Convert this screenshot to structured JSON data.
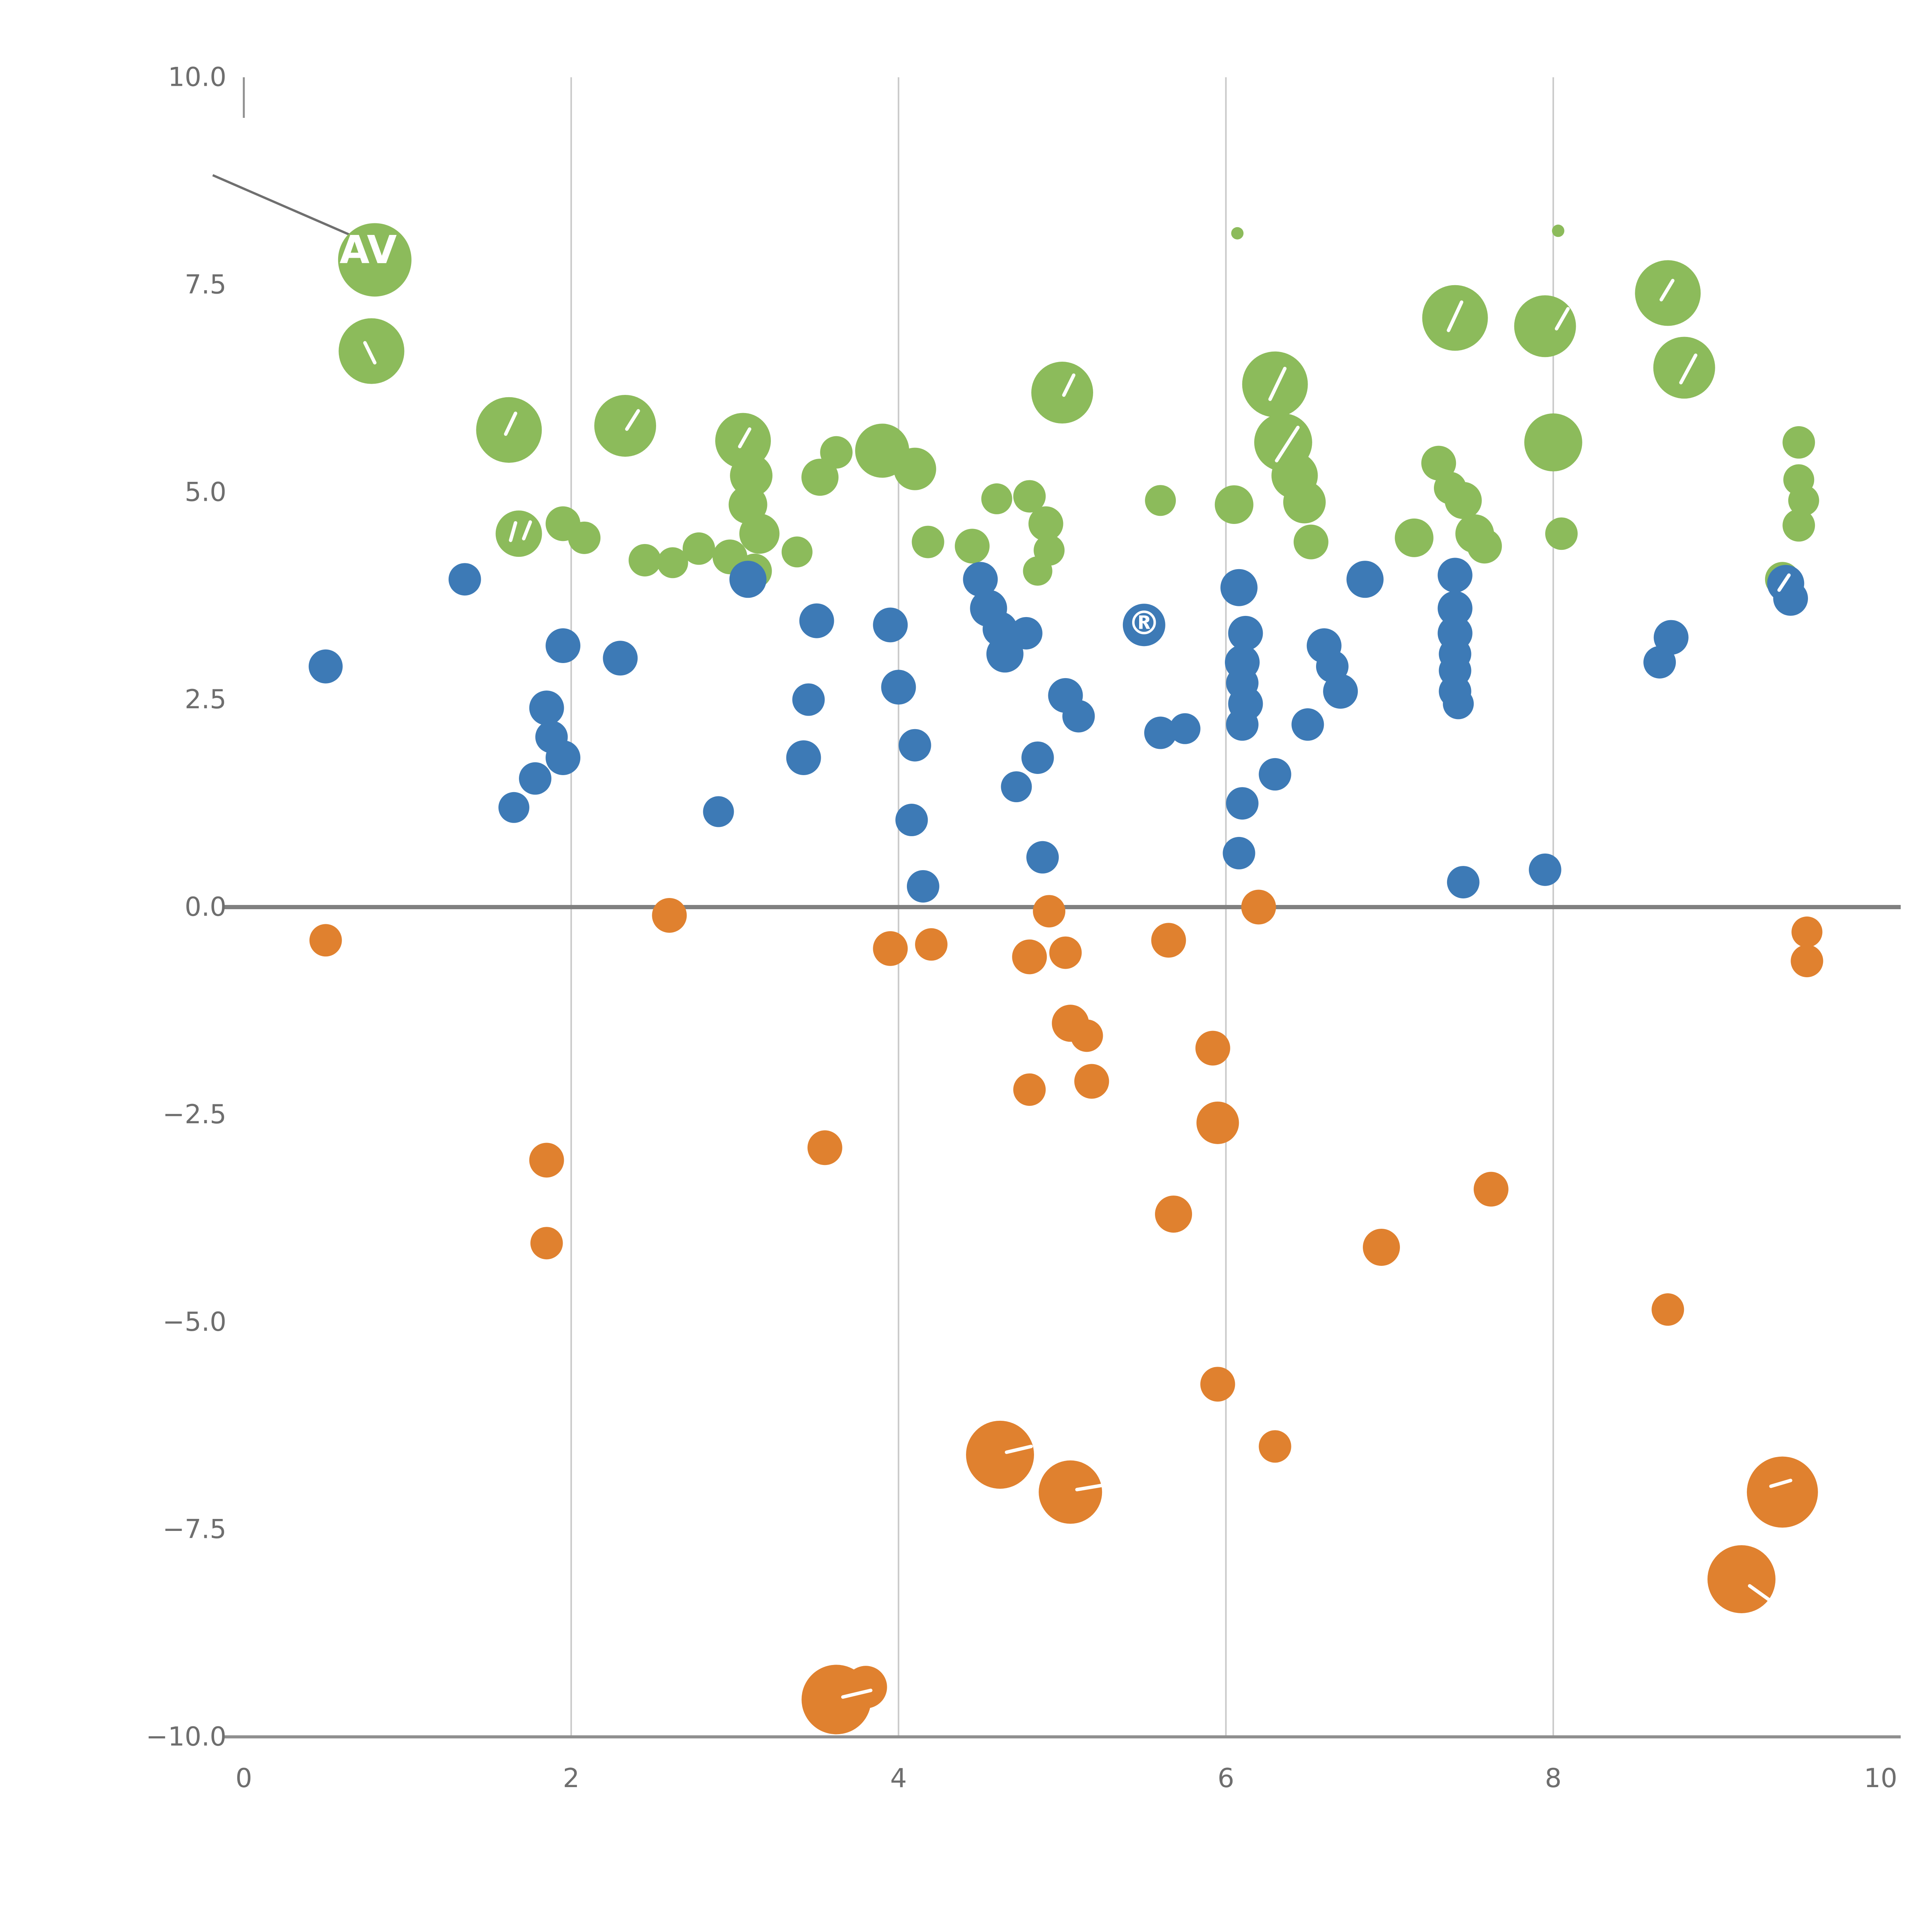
{
  "chart_data": {
    "type": "scatter",
    "title": "",
    "xlabel": "",
    "ylabel": "",
    "xlim": [
      0,
      10
    ],
    "ylim": [
      -10,
      10
    ],
    "x_ticks": [
      0,
      2,
      4,
      6,
      8,
      10
    ],
    "x_tick_labels": [
      "0",
      "2",
      "4",
      "6",
      "8",
      "10"
    ],
    "y_ticks": [
      10.0,
      7.5,
      5.0,
      2.5,
      0.0,
      -2.5,
      -5.0,
      -7.5,
      -10.0
    ],
    "y_tick_labels": [
      "10.0",
      "7.5",
      "5.0",
      "2.5",
      "0.0",
      "−2.5",
      "−5.0",
      "−7.5",
      "−10.0"
    ],
    "grid": {
      "vertical_at": [
        2,
        4,
        6,
        8
      ],
      "gridline_color": "#c9c9c9",
      "zero_line_y": 0,
      "zero_line_color": "#808080",
      "axis_line_color": "#8f8f8f",
      "tick_label_color": "#6e6e6e"
    },
    "legend": "none",
    "series": [
      {
        "name": "green",
        "color": "#8cbb5b",
        "points": [
          [
            0.8,
            7.8,
            95
          ],
          [
            0.78,
            6.7,
            85
          ],
          [
            1.62,
            5.75,
            85
          ],
          [
            2.33,
            5.8,
            80
          ],
          [
            1.68,
            4.5,
            60
          ],
          [
            1.95,
            4.62,
            45
          ],
          [
            2.08,
            4.45,
            42
          ],
          [
            2.45,
            4.18,
            42
          ],
          [
            2.62,
            4.15,
            40
          ],
          [
            2.78,
            4.32,
            42
          ],
          [
            2.97,
            4.22,
            45
          ],
          [
            3.05,
            5.62,
            72
          ],
          [
            3.1,
            5.2,
            55
          ],
          [
            3.08,
            4.85,
            50
          ],
          [
            3.15,
            4.5,
            52
          ],
          [
            3.12,
            4.05,
            45
          ],
          [
            3.38,
            4.28,
            40
          ],
          [
            3.52,
            5.18,
            48
          ],
          [
            3.62,
            5.48,
            42
          ],
          [
            3.9,
            5.5,
            70
          ],
          [
            4.1,
            5.28,
            55
          ],
          [
            4.18,
            4.4,
            42
          ],
          [
            4.45,
            4.35,
            45
          ],
          [
            4.6,
            4.92,
            40
          ],
          [
            4.8,
            4.95,
            42
          ],
          [
            4.9,
            4.62,
            45
          ],
          [
            4.92,
            4.3,
            40
          ],
          [
            4.85,
            4.05,
            38
          ],
          [
            5.0,
            6.2,
            80
          ],
          [
            5.6,
            4.9,
            40
          ],
          [
            6.05,
            4.85,
            50
          ],
          [
            6.3,
            6.3,
            85
          ],
          [
            6.35,
            5.6,
            75
          ],
          [
            6.42,
            5.2,
            60
          ],
          [
            6.48,
            4.88,
            55
          ],
          [
            6.52,
            4.4,
            45
          ],
          [
            7.15,
            4.45,
            50
          ],
          [
            7.3,
            5.35,
            45
          ],
          [
            7.37,
            5.05,
            42
          ],
          [
            7.4,
            7.1,
            85
          ],
          [
            7.45,
            4.9,
            48
          ],
          [
            7.52,
            4.5,
            50
          ],
          [
            7.58,
            4.35,
            45
          ],
          [
            7.95,
            7.0,
            80
          ],
          [
            8.0,
            5.6,
            75
          ],
          [
            8.05,
            4.5,
            42
          ],
          [
            8.7,
            7.4,
            85
          ],
          [
            8.8,
            6.5,
            80
          ],
          [
            9.4,
            3.95,
            45
          ],
          [
            9.5,
            5.6,
            42
          ],
          [
            9.5,
            5.15,
            40
          ],
          [
            9.53,
            4.9,
            40
          ],
          [
            9.5,
            4.6,
            42
          ],
          [
            6.07,
            8.12,
            16
          ],
          [
            8.03,
            8.15,
            16
          ]
        ]
      },
      {
        "name": "blue",
        "color": "#3d7ab6",
        "points": [
          [
            0.5,
            2.9,
            44
          ],
          [
            1.35,
            3.95,
            42
          ],
          [
            1.65,
            1.2,
            40
          ],
          [
            1.78,
            1.55,
            42
          ],
          [
            1.85,
            2.4,
            45
          ],
          [
            1.88,
            2.05,
            42
          ],
          [
            1.95,
            1.8,
            45
          ],
          [
            1.95,
            3.15,
            45
          ],
          [
            2.3,
            3.0,
            45
          ],
          [
            2.9,
            1.15,
            40
          ],
          [
            3.08,
            3.95,
            48
          ],
          [
            3.5,
            3.45,
            45
          ],
          [
            3.45,
            2.5,
            42
          ],
          [
            3.42,
            1.8,
            45
          ],
          [
            3.95,
            3.4,
            45
          ],
          [
            4.0,
            2.65,
            45
          ],
          [
            4.1,
            1.95,
            42
          ],
          [
            4.08,
            1.05,
            42
          ],
          [
            4.15,
            0.25,
            42
          ],
          [
            4.5,
            3.95,
            45
          ],
          [
            4.55,
            3.6,
            48
          ],
          [
            4.62,
            3.35,
            45
          ],
          [
            4.65,
            3.05,
            48
          ],
          [
            4.78,
            3.3,
            42
          ],
          [
            4.72,
            1.45,
            40
          ],
          [
            4.85,
            1.8,
            42
          ],
          [
            4.88,
            0.6,
            42
          ],
          [
            5.02,
            2.55,
            45
          ],
          [
            5.1,
            2.3,
            42
          ],
          [
            5.5,
            3.4,
            55
          ],
          [
            5.6,
            2.1,
            42
          ],
          [
            5.75,
            2.15,
            40
          ],
          [
            6.08,
            3.85,
            48
          ],
          [
            6.12,
            3.3,
            45
          ],
          [
            6.1,
            2.95,
            45
          ],
          [
            6.1,
            2.7,
            42
          ],
          [
            6.12,
            2.45,
            45
          ],
          [
            6.1,
            2.2,
            42
          ],
          [
            6.1,
            1.25,
            42
          ],
          [
            6.08,
            0.65,
            42
          ],
          [
            6.3,
            1.6,
            42
          ],
          [
            6.5,
            2.2,
            42
          ],
          [
            6.6,
            3.15,
            45
          ],
          [
            6.65,
            2.9,
            42
          ],
          [
            6.7,
            2.6,
            45
          ],
          [
            6.85,
            3.95,
            48
          ],
          [
            7.4,
            4.0,
            45
          ],
          [
            7.4,
            3.6,
            45
          ],
          [
            7.4,
            3.3,
            45
          ],
          [
            7.4,
            3.05,
            42
          ],
          [
            7.4,
            2.85,
            42
          ],
          [
            7.4,
            2.6,
            42
          ],
          [
            7.42,
            2.45,
            40
          ],
          [
            7.45,
            0.3,
            42
          ],
          [
            7.95,
            0.45,
            42
          ],
          [
            8.65,
            2.95,
            42
          ],
          [
            8.72,
            3.25,
            45
          ],
          [
            9.42,
            3.9,
            48
          ],
          [
            9.45,
            3.72,
            45
          ]
        ]
      },
      {
        "name": "orange",
        "color": "#e0812f",
        "points": [
          [
            0.5,
            -0.4,
            42
          ],
          [
            1.85,
            -3.05,
            45
          ],
          [
            1.85,
            -4.05,
            42
          ],
          [
            2.6,
            -0.1,
            45
          ],
          [
            3.55,
            -2.9,
            45
          ],
          [
            3.62,
            -9.55,
            90
          ],
          [
            3.8,
            -9.4,
            55
          ],
          [
            3.95,
            -0.5,
            45
          ],
          [
            4.2,
            -0.45,
            42
          ],
          [
            4.8,
            -0.6,
            45
          ],
          [
            4.92,
            -0.05,
            42
          ],
          [
            5.02,
            -0.55,
            42
          ],
          [
            5.05,
            -1.4,
            48
          ],
          [
            5.15,
            -1.55,
            42
          ],
          [
            5.18,
            -2.1,
            45
          ],
          [
            4.8,
            -2.2,
            42
          ],
          [
            4.62,
            -6.6,
            88
          ],
          [
            5.05,
            -7.05,
            82
          ],
          [
            5.65,
            -0.4,
            45
          ],
          [
            5.68,
            -3.7,
            48
          ],
          [
            5.92,
            -1.7,
            45
          ],
          [
            5.95,
            -2.6,
            55
          ],
          [
            5.95,
            -5.75,
            45
          ],
          [
            6.2,
            0.0,
            45
          ],
          [
            6.3,
            -6.5,
            42
          ],
          [
            6.95,
            -4.1,
            48
          ],
          [
            7.62,
            -3.4,
            45
          ],
          [
            8.7,
            -4.85,
            42
          ],
          [
            9.4,
            -7.05,
            92
          ],
          [
            9.15,
            -8.1,
            88
          ],
          [
            9.55,
            -0.3,
            40
          ],
          [
            9.55,
            -0.65,
            42
          ]
        ]
      }
    ],
    "annotations": {
      "leader_line": {
        "from": [
          -0.19,
          8.82
        ],
        "to": [
          0.79,
          7.98
        ],
        "color": "#6f6f6f"
      },
      "bubble_labels": [
        {
          "text": "AV",
          "x": 0.76,
          "y": 7.92,
          "size": 100,
          "color": "#ffffff"
        },
        {
          "text": "®",
          "x": 5.5,
          "y": 3.42,
          "size": 85,
          "color": "#ffffff"
        }
      ],
      "label_fragments": [
        [
          0.74,
          6.8,
          0.8,
          6.56
        ],
        [
          1.6,
          5.7,
          1.66,
          5.95
        ],
        [
          2.34,
          5.76,
          2.41,
          5.98
        ],
        [
          1.63,
          4.42,
          1.66,
          4.63
        ],
        [
          1.71,
          4.44,
          1.75,
          4.64
        ],
        [
          3.03,
          5.55,
          3.09,
          5.76
        ],
        [
          5.01,
          6.17,
          5.07,
          6.41
        ],
        [
          6.27,
          6.12,
          6.36,
          6.49
        ],
        [
          6.31,
          5.38,
          6.44,
          5.78
        ],
        [
          7.36,
          6.95,
          7.44,
          7.29
        ],
        [
          8.02,
          6.97,
          8.09,
          7.21
        ],
        [
          8.66,
          7.32,
          8.73,
          7.55
        ],
        [
          8.78,
          6.32,
          8.87,
          6.65
        ],
        [
          9.38,
          3.82,
          9.44,
          4.0
        ],
        [
          3.66,
          -9.52,
          3.83,
          -9.44
        ],
        [
          4.66,
          -6.57,
          4.81,
          -6.5
        ],
        [
          5.09,
          -7.02,
          5.27,
          -6.96
        ],
        [
          9.33,
          -6.98,
          9.45,
          -6.91
        ],
        [
          9.2,
          -8.18,
          9.32,
          -8.35
        ]
      ]
    }
  }
}
